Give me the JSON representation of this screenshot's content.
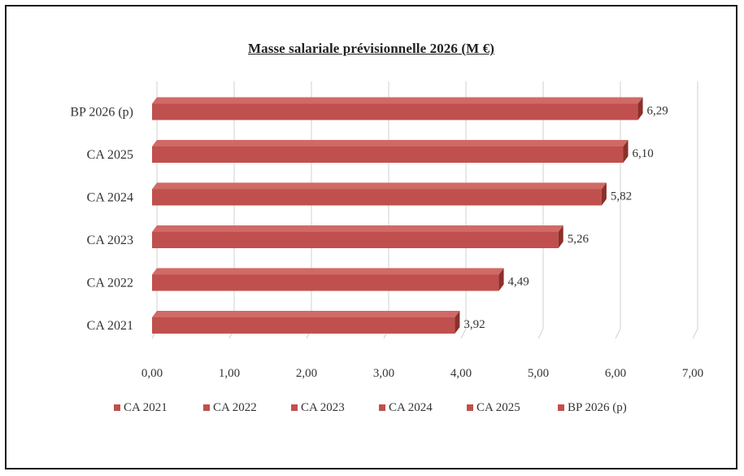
{
  "chart_data": {
    "type": "bar",
    "orientation": "horizontal",
    "title": "Masse salariale prévisionnelle  2026 (M €)",
    "categories": [
      "CA 2021",
      "CA 2022",
      "CA 2023",
      "CA 2024",
      "CA 2025",
      "BP 2026 (p)"
    ],
    "values": [
      3.92,
      4.49,
      5.26,
      5.82,
      6.1,
      6.29
    ],
    "value_labels": [
      "3,92",
      "4,49",
      "5,26",
      "5,82",
      "6,10",
      "6,29"
    ],
    "xlim": [
      0,
      7
    ],
    "x_ticks": [
      0,
      1,
      2,
      3,
      4,
      5,
      6,
      7
    ],
    "x_tick_labels": [
      "0,00",
      "1,00",
      "2,00",
      "3,00",
      "4,00",
      "5,00",
      "6,00",
      "7,00"
    ],
    "legend": [
      "CA 2021",
      "CA 2022",
      "CA 2023",
      "CA 2024",
      "CA 2025",
      "BP 2026 (p)"
    ],
    "legend_position": "bottom",
    "grid": true,
    "bar_color": "#c0504d",
    "bar_top_color": "#d06a66",
    "bar_side_color": "#8b2f2c"
  }
}
